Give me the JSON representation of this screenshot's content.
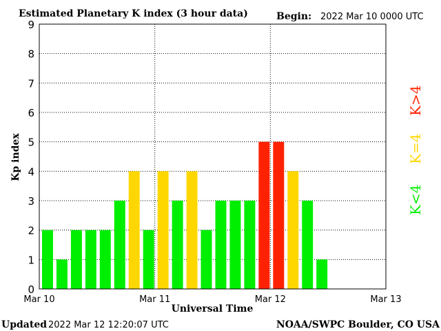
{
  "header": {
    "title": "Estimated Planetary K index (3 hour data)",
    "begin_label": "Begin:",
    "begin_value": "2022 Mar 10 0000 UTC"
  },
  "footer": {
    "updated_label": "Updated",
    "updated_value": "2022 Mar 12 12:20:07 UTC",
    "source": "NOAA/SWPC Boulder, CO USA"
  },
  "legend": {
    "low": "K<4",
    "mid": "K=4",
    "high": "K>4"
  },
  "colors": {
    "low": "#00ee00",
    "mid": "#ffd700",
    "high": "#ff2200",
    "grid": "#000000",
    "frame": "#000000"
  },
  "chart_data": {
    "type": "bar",
    "title": "Estimated Planetary K index (3 hour data)",
    "xlabel": "Universal Time",
    "ylabel": "Kp index",
    "ylim": [
      0,
      9
    ],
    "yticks": [
      "0",
      "1",
      "2",
      "3",
      "4",
      "5",
      "6",
      "7",
      "8",
      "9"
    ],
    "xticks": [
      "Mar 10",
      "Mar 11",
      "Mar 12",
      "Mar 13"
    ],
    "slots_total": 24,
    "grid": "dotted",
    "values": [
      2,
      1,
      2,
      2,
      2,
      3,
      4,
      2,
      4,
      3,
      4,
      2,
      3,
      3,
      3,
      5,
      5,
      4,
      3,
      1
    ]
  }
}
